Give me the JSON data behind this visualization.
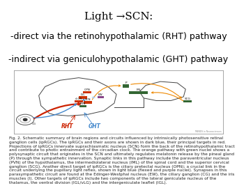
{
  "title_line1": "Light →SCN:",
  "title_line2": "-direct via the retinohypothalamic (RHT) pathway",
  "title_line3": "-indirect via geniculohypothalamic (GHT) pathway",
  "title_fontsize": 11,
  "subtitle_fontsize": 9,
  "bg_color": "#ffffff",
  "caption": "Fig. 2. Schematic summary of brain regions and circuits influenced by intrinsically photosensitive retinal ganglion cells (ipRGCs). The ipRGCs and their axons are shown in dark blue, their principal targets in red. Projections of ipRGCs innervate suprachiasmatic nucleus (SCN) form the back of the retinohypothalamic tract and contribute to photic entrainment of the circadian clock. The orange pathway with green nuclei shows a polysynaptic circuit that originates in the SCN and ultimately regulates melatonin release by the pineal gland (P) through the sympathetic innervation. Synaptic links in this pathway include the paraventricular nucleus (PVN) of the hypothalamus, the intermediolateral nucleus (IML) of the spinal cord and the superior cervical ganglion (SCG). Another direct target of ipRGCs is the ciliary pretectal nucleus (OPN); a crucial link in the circuit underlying the pupillary light reflex, shown in light blue (flexed and purple nuclei). Synapses in this parasympathetic circuit are found at the Edinger-Westphal nucleus (EW), the ciliary ganglion (CG) and the iris muscles (I). Other targets of ipRGCs include two components of the lateral geniculate nucleus of the thalamus, the ventral division (IGL/vLG) and the intergeniculate leaflet (IGL).",
  "caption_fontsize": 4.2
}
